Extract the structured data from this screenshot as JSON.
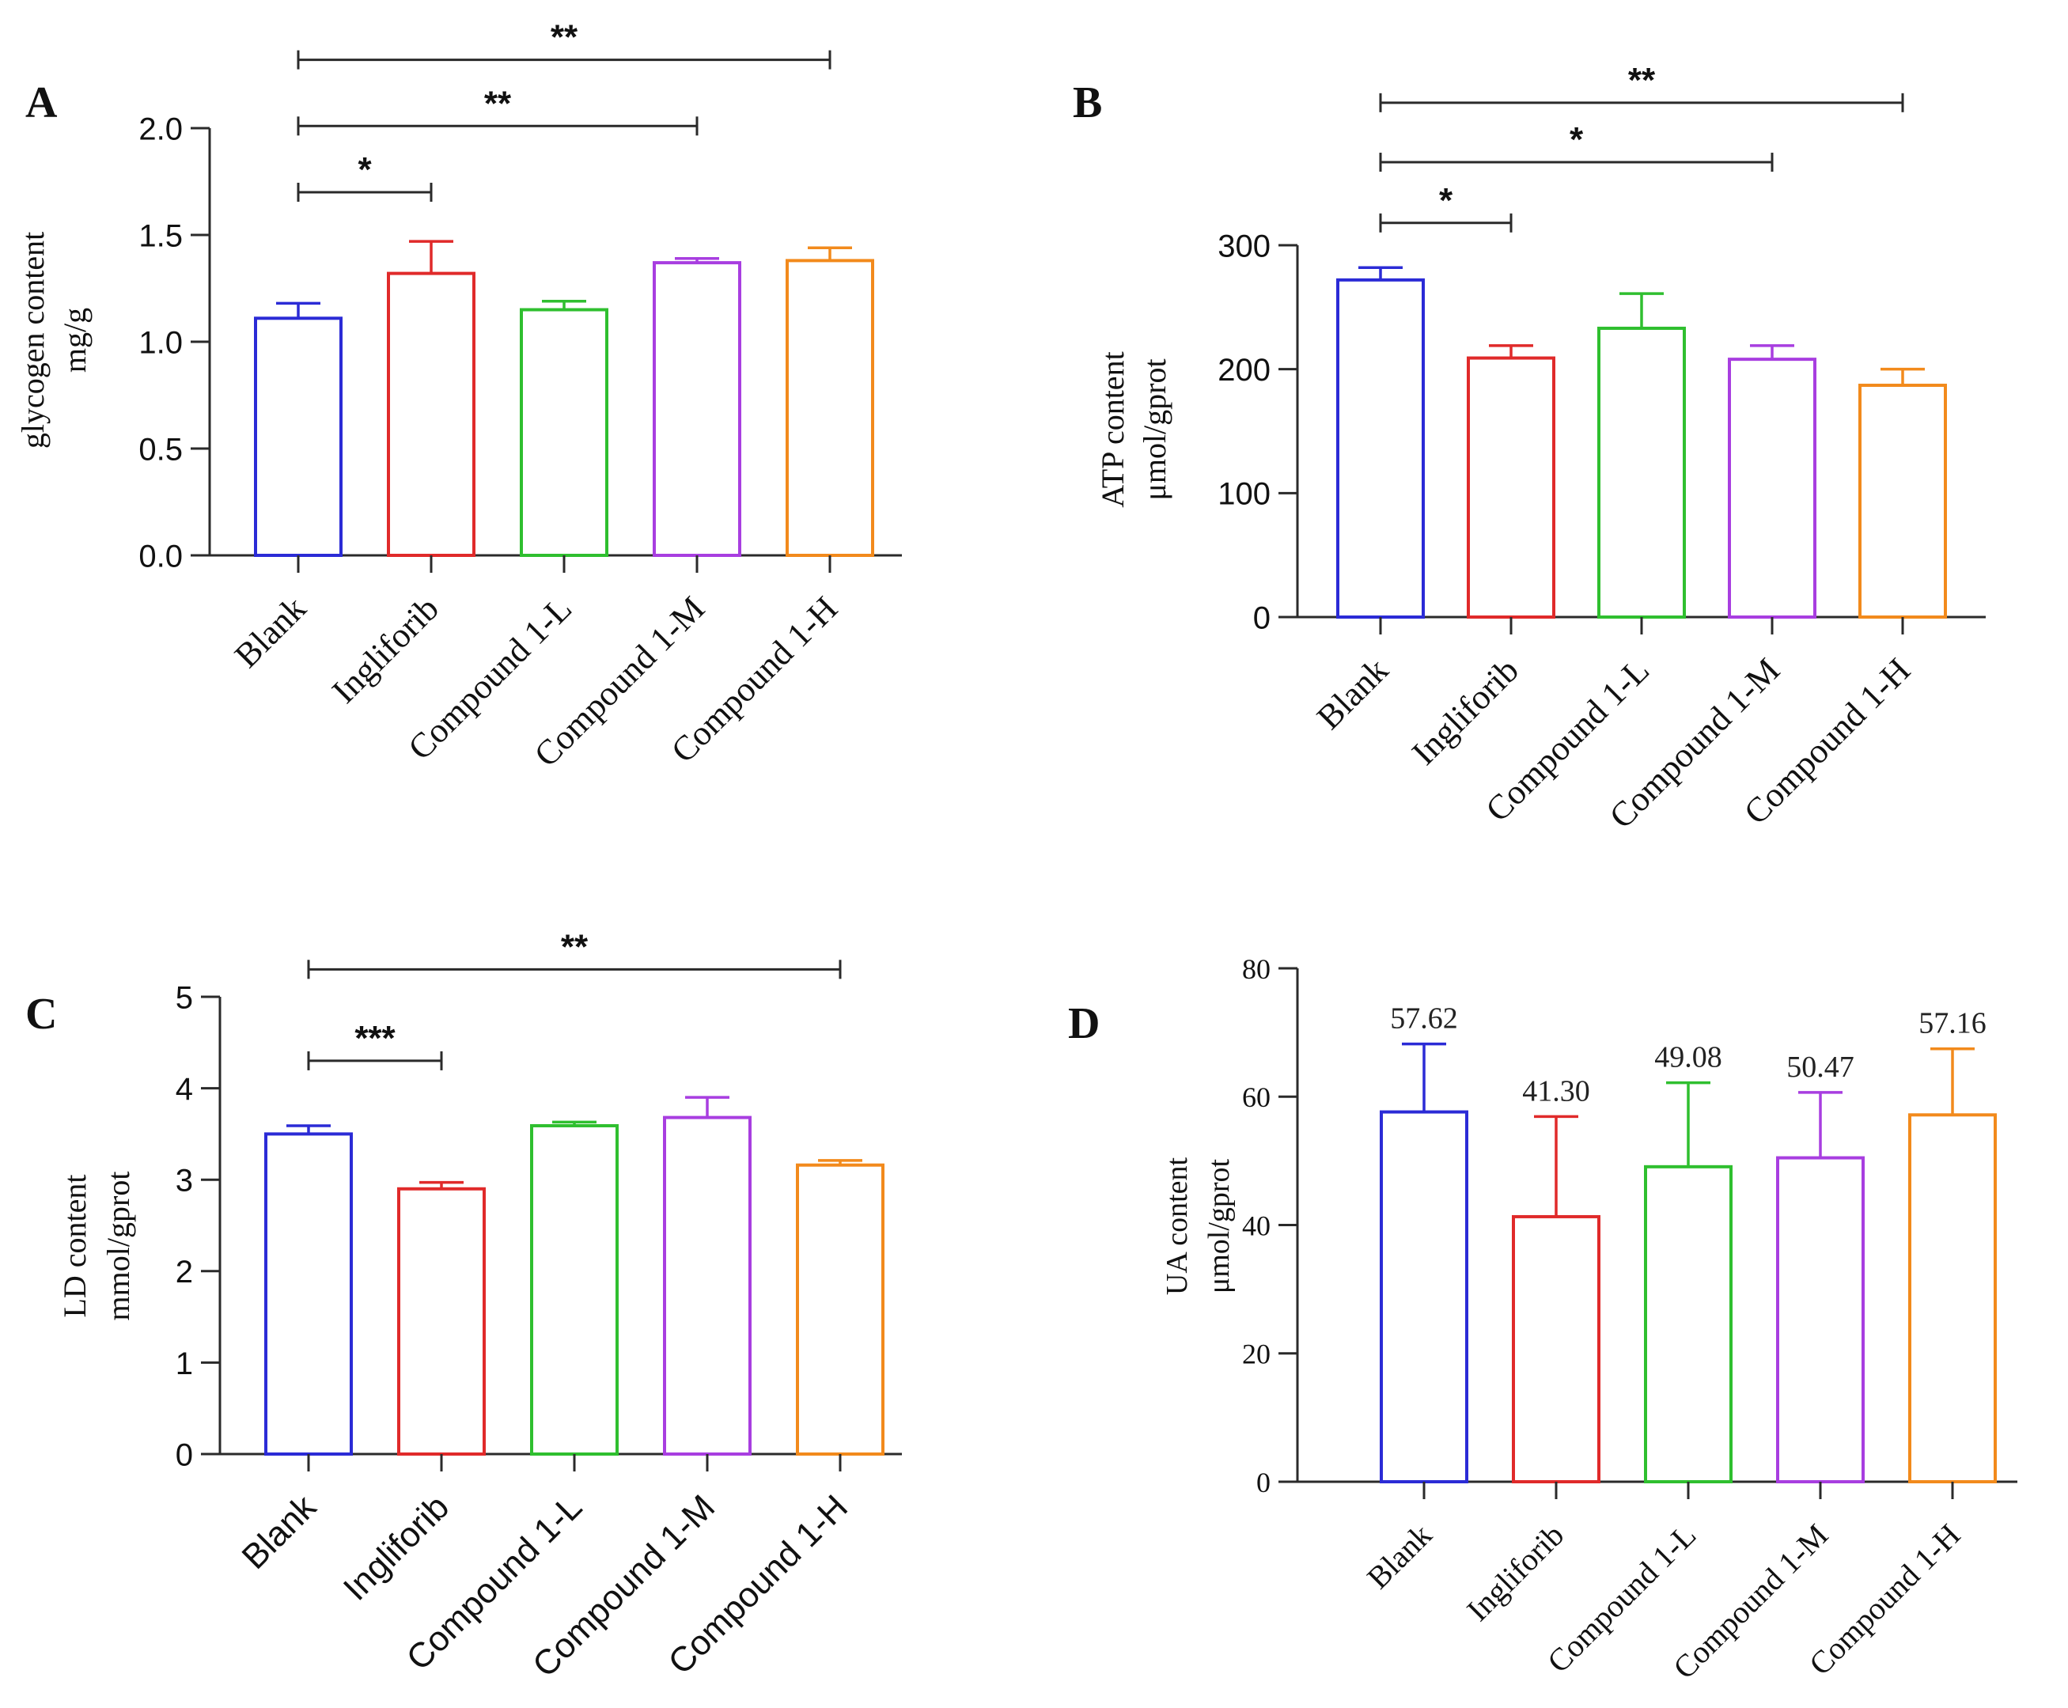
{
  "chart_data": [
    {
      "panel": "A",
      "type": "bar",
      "categories": [
        "Blank",
        "Ingliforib",
        "Compound 1-L",
        "Compound 1-M",
        "Compound 1-H"
      ],
      "values": [
        1.11,
        1.32,
        1.15,
        1.37,
        1.38
      ],
      "errors": [
        0.07,
        0.15,
        0.04,
        0.02,
        0.06
      ],
      "ylabel_lines": [
        "glycogen content",
        "mg/g"
      ],
      "ylim": [
        0,
        2.0
      ],
      "yticks": [
        0,
        0.5,
        1.0,
        1.5,
        2.0
      ],
      "ytick_labels": [
        "0.0",
        "0.5",
        "1.0",
        "1.5",
        "2.0"
      ],
      "significance": [
        {
          "from": 0,
          "to": 1,
          "level": 1.7,
          "label": "*"
        },
        {
          "from": 0,
          "to": 3,
          "level": 2.01,
          "label": "**"
        },
        {
          "from": 0,
          "to": 4,
          "level": 2.32,
          "label": "**"
        }
      ]
    },
    {
      "panel": "B",
      "type": "bar",
      "categories": [
        "Blank",
        "Ingliforib",
        "Compound 1-L",
        "Compound 1-M",
        "Compound 1-H"
      ],
      "values": [
        272,
        209,
        233,
        208,
        187
      ],
      "errors": [
        10,
        10,
        28,
        11,
        13
      ],
      "ylabel_lines": [
        "ATP content",
        "μmol/gprot"
      ],
      "ylim": [
        0,
        300
      ],
      "yticks": [
        0,
        100,
        200,
        300
      ],
      "ytick_labels": [
        "0",
        "100",
        "200",
        "300"
      ],
      "significance": [
        {
          "from": 0,
          "to": 1,
          "level": 318,
          "label": "*"
        },
        {
          "from": 0,
          "to": 3,
          "level": 367,
          "label": "*"
        },
        {
          "from": 0,
          "to": 4,
          "level": 415,
          "label": "**"
        }
      ]
    },
    {
      "panel": "C",
      "type": "bar",
      "categories": [
        "Blank",
        "Ingliforib",
        "Compound 1-L",
        "Compound 1-M",
        "Compound 1-H"
      ],
      "values": [
        3.5,
        2.9,
        3.59,
        3.68,
        3.16
      ],
      "errors": [
        0.09,
        0.07,
        0.04,
        0.22,
        0.05
      ],
      "ylabel_lines": [
        "LD content",
        "mmol/gprot"
      ],
      "ylim": [
        0,
        5
      ],
      "yticks": [
        0,
        1,
        2,
        3,
        4,
        5
      ],
      "ytick_labels": [
        "0",
        "1",
        "2",
        "3",
        "4",
        "5"
      ],
      "significance": [
        {
          "from": 0,
          "to": 1,
          "level": 4.3,
          "label": "***"
        },
        {
          "from": 0,
          "to": 4,
          "level": 5.3,
          "label": "**"
        }
      ]
    },
    {
      "panel": "D",
      "type": "bar",
      "categories": [
        "Blank",
        "Ingliforib",
        "Compound 1-L",
        "Compound 1-M",
        "Compound 1-H"
      ],
      "values": [
        57.62,
        41.3,
        49.08,
        50.47,
        57.16
      ],
      "errors": [
        10.6,
        15.6,
        13.1,
        10.2,
        10.3
      ],
      "value_labels": [
        "57.62",
        "41.30",
        "49.08",
        "50.47",
        "57.16"
      ],
      "ylabel_lines": [
        "UA content",
        "μmol/gprot"
      ],
      "ylim": [
        0,
        80
      ],
      "yticks": [
        0,
        20,
        40,
        60,
        80
      ],
      "ytick_labels": [
        "0",
        "20",
        "40",
        "60",
        "80"
      ],
      "significance": []
    }
  ],
  "colors": [
    "#2b2bd6",
    "#e02a2a",
    "#2fbf2f",
    "#a83ee0",
    "#f28a1c"
  ]
}
